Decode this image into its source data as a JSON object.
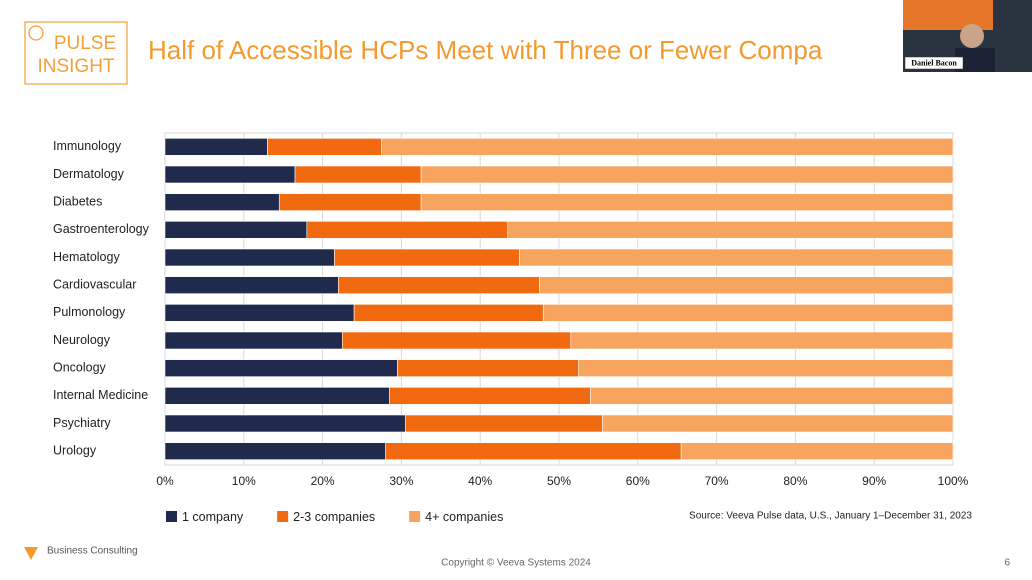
{
  "logo": {
    "line1": "PULSE",
    "line2": "INSIGHT"
  },
  "speaker": "Daniel Bacon",
  "chart_data": {
    "type": "bar",
    "orientation": "horizontal",
    "stacked": true,
    "title": "Half of Accessible HCPs Meet with Three or Fewer Compa",
    "categories": [
      "Immunology",
      "Dermatology",
      "Diabetes",
      "Gastroenterology",
      "Hematology",
      "Cardiovascular",
      "Pulmonology",
      "Neurology",
      "Oncology",
      "Internal Medicine",
      "Psychiatry",
      "Urology"
    ],
    "series": [
      {
        "name": "1 company",
        "color": "#1f2a4c",
        "values": [
          13,
          16.5,
          14.5,
          18,
          21.5,
          22,
          24,
          22.5,
          29.5,
          28.5,
          30.5,
          28
        ]
      },
      {
        "name": "2-3 companies",
        "color": "#f26a10",
        "values": [
          14.5,
          16,
          18,
          25.5,
          23.5,
          25.5,
          24,
          29,
          23,
          25.5,
          25,
          37.5
        ]
      },
      {
        "name": "4+ companies",
        "color": "#f7a45e",
        "values": [
          72.5,
          67.5,
          67.5,
          56.5,
          55,
          52.5,
          52,
          48.5,
          47.5,
          46,
          44.5,
          34.5
        ]
      }
    ],
    "xlim": [
      0,
      100
    ],
    "xticks": [
      {
        "value": 0,
        "label": "0%"
      },
      {
        "value": 10,
        "label": "10%"
      },
      {
        "value": 20,
        "label": "20%"
      },
      {
        "value": 30,
        "label": "30%"
      },
      {
        "value": 40,
        "label": "40%"
      },
      {
        "value": 50,
        "label": "50%"
      },
      {
        "value": 60,
        "label": "60%"
      },
      {
        "value": 70,
        "label": "70%"
      },
      {
        "value": 80,
        "label": "80%"
      },
      {
        "value": 90,
        "label": "90%"
      },
      {
        "value": 100,
        "label": "100%"
      }
    ],
    "grid": true,
    "legend": "bottom-left",
    "source": "Source: Veeva Pulse data, U.S., January 1–December 31, 2023"
  },
  "footer": {
    "brand": "Business Consulting",
    "copyright": "Copyright © Veeva Systems 2024",
    "page": "6"
  }
}
